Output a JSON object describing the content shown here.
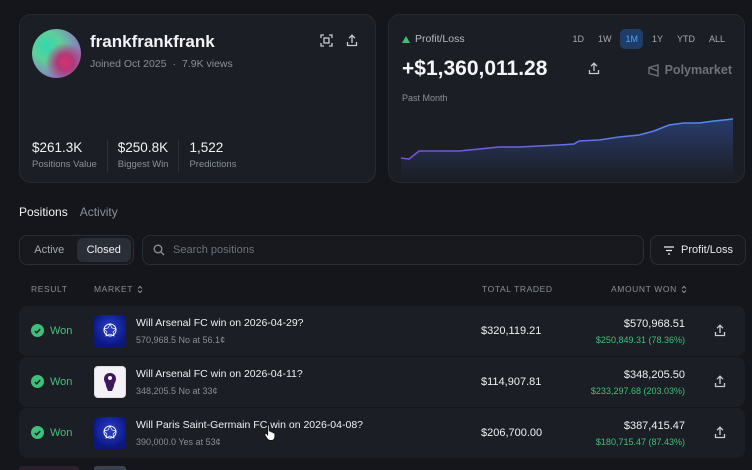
{
  "profile": {
    "username": "frankfrankfrank",
    "joined": "Joined Oct 2025",
    "views": "7.9K views",
    "stats": [
      {
        "value": "$261.3K",
        "label": "Positions Value"
      },
      {
        "value": "$250.8K",
        "label": "Biggest Win"
      },
      {
        "value": "1,522",
        "label": "Predictions"
      }
    ]
  },
  "pnl": {
    "label": "Profit/Loss",
    "value": "+$1,360,011.28",
    "period": "Past Month",
    "brand": "Polymarket",
    "ranges": [
      "1D",
      "1W",
      "1M",
      "1Y",
      "YTD",
      "ALL"
    ],
    "active_range": "1M",
    "line_color": "#4f7df0"
  },
  "tabs": {
    "positions": "Positions",
    "activity": "Activity"
  },
  "filters": {
    "active": "Active",
    "closed": "Closed",
    "search_placeholder": "Search positions",
    "sort": "Profit/Loss"
  },
  "table": {
    "headers": {
      "result": "RESULT",
      "market": "MARKET",
      "total_traded": "TOTAL TRADED",
      "amount_won": "AMOUNT WON"
    },
    "rows": [
      {
        "result": "Won",
        "question": "Will Arsenal FC win on 2026-04-29?",
        "detail": "570,968.5 No at 56.1¢",
        "traded": "$320,119.21",
        "amount": "$570,968.51",
        "gain": "$250,849.31 (78.36%)",
        "league": "ucl"
      },
      {
        "result": "Won",
        "question": "Will Arsenal FC win on 2026-04-11?",
        "detail": "348,205.5 No at 33¢",
        "traded": "$114,907.81",
        "amount": "$348,205.50",
        "gain": "$233,297.68 (203.03%)",
        "league": "epl"
      },
      {
        "result": "Won",
        "question": "Will Paris Saint-Germain FC win on 2026-04-08?",
        "detail": "390,000.0 Yes at 53¢",
        "traded": "$206,700.00",
        "amount": "$387,415.47",
        "gain": "$180,715.47 (87.43%)",
        "league": "ucl"
      }
    ]
  }
}
